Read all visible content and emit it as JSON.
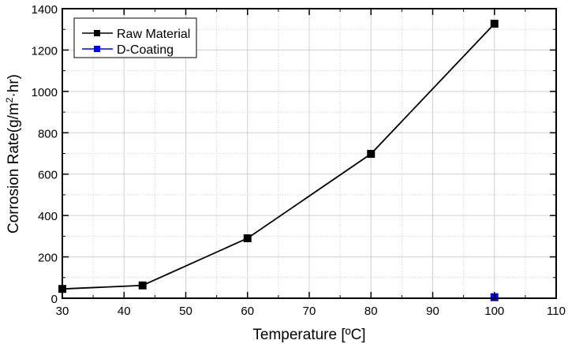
{
  "chart_data": {
    "type": "line",
    "title": "",
    "xlabel": "Temperature [ºC]",
    "ylabel": "Corrosion Rate(g/m²·hr)",
    "ylabel_main": "Corrosion Rate(g/m",
    "ylabel_sup": "2",
    "ylabel_end": "·hr)",
    "xlim": [
      30,
      110
    ],
    "ylim": [
      0,
      1400
    ],
    "xticks": [
      30,
      40,
      50,
      60,
      70,
      80,
      90,
      100,
      110
    ],
    "yticks": [
      0,
      200,
      400,
      600,
      800,
      1000,
      1200,
      1400
    ],
    "grid": true,
    "legend_position": "top-left",
    "series": [
      {
        "name": "Raw Material",
        "color": "#000000",
        "marker": "square",
        "x": [
          30,
          43,
          60,
          80,
          100
        ],
        "y": [
          45,
          62,
          290,
          698,
          1327
        ]
      },
      {
        "name": "D-Coating",
        "color": "#0000ff",
        "marker": "square",
        "x": [
          100
        ],
        "y": [
          5
        ]
      }
    ]
  }
}
